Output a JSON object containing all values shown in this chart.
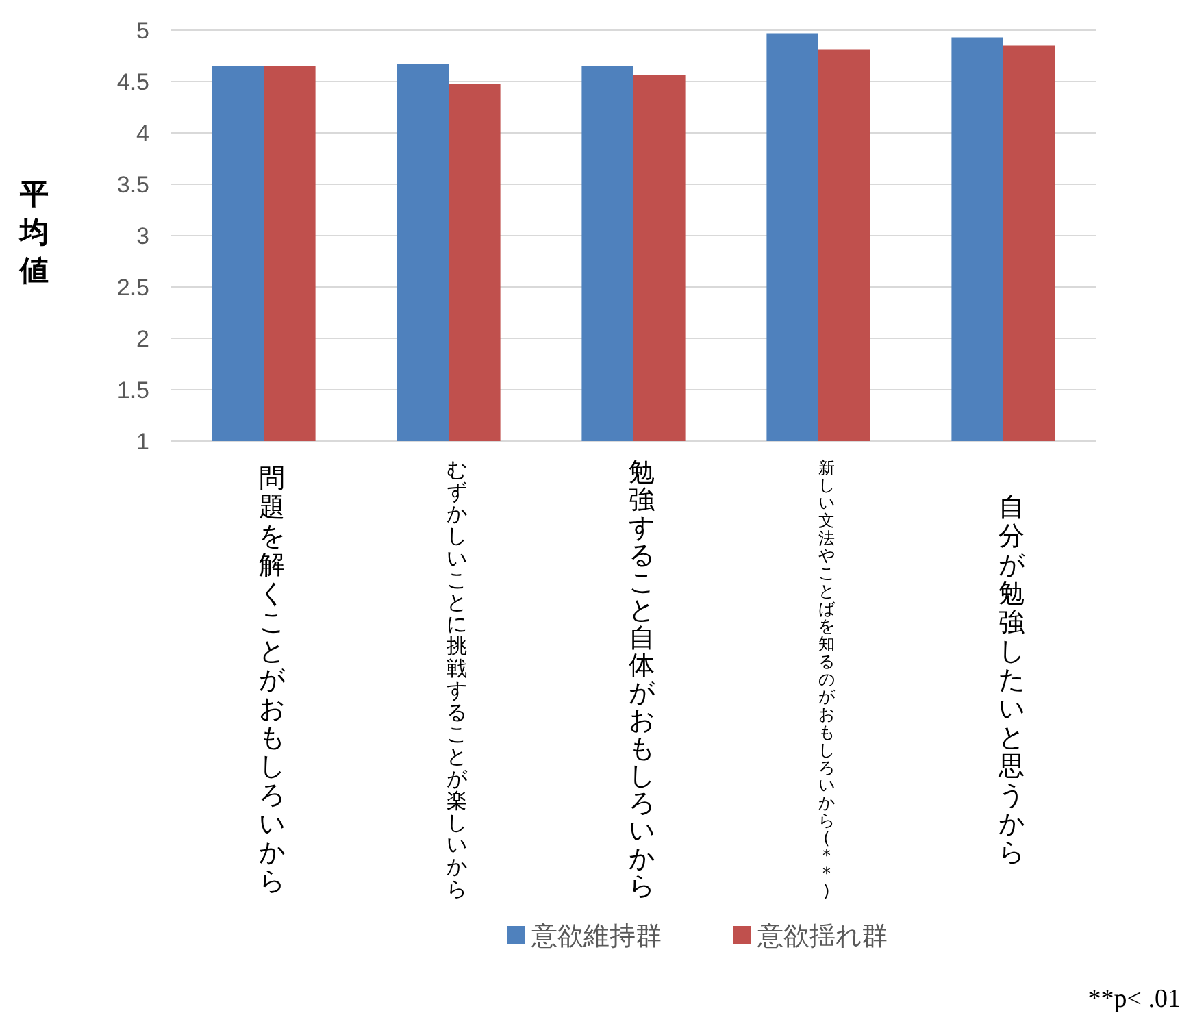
{
  "chart_data": {
    "type": "bar",
    "ylabel": "平均値",
    "categories": [
      "問題を解くことがおもしろいから",
      "むずかしいことに挑戦することが楽しいから",
      "勉強すること自体がおもしろいから",
      "新しい文法やことばを知るのがおもしろいから(**)",
      "自分が勉強したいと思うから"
    ],
    "series": [
      {
        "name": "意欲維持群",
        "color": "#4f81bd",
        "values": [
          4.65,
          4.67,
          4.65,
          4.97,
          4.93
        ]
      },
      {
        "name": "意欲揺れ群",
        "color": "#c0504d",
        "values": [
          4.65,
          4.48,
          4.56,
          4.81,
          4.85
        ]
      }
    ],
    "ylim": [
      1,
      5
    ],
    "yticks": [
      1,
      1.5,
      2,
      2.5,
      3,
      3.5,
      4,
      4.5,
      5
    ],
    "grid": "y",
    "legend": "bottom",
    "annotations": [
      "**p< .01"
    ]
  }
}
